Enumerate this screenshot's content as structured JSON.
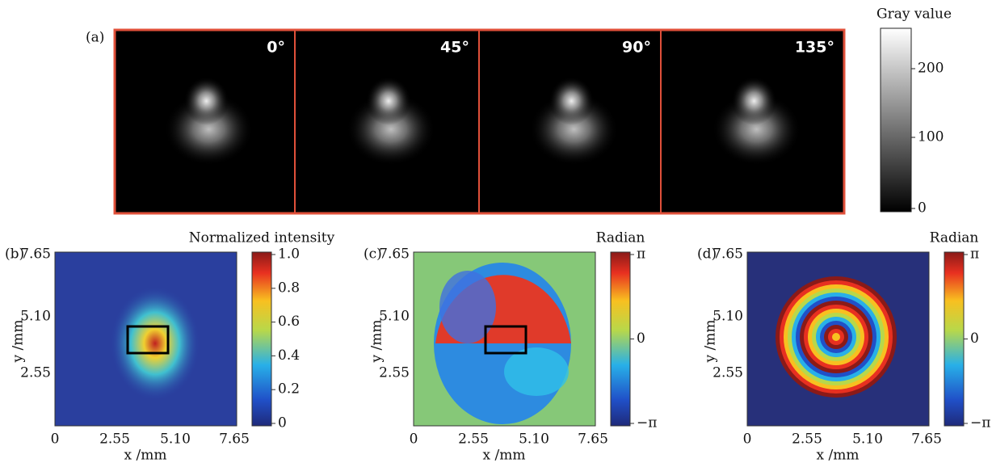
{
  "panel_a": {
    "label": "(a)",
    "angles": [
      "0°",
      "45°",
      "90°",
      "135°"
    ],
    "colorbar": {
      "title": "Gray value",
      "ticks": [
        "200",
        "100",
        "0"
      ]
    }
  },
  "panel_b": {
    "label": "(b)",
    "colorbar_title": "Normalized intensity",
    "colorbar_ticks": [
      "1.0",
      "0.8",
      "0.6",
      "0.4",
      "0.2",
      "0"
    ],
    "y_ticks": [
      "7.65",
      "5.10",
      "2.55"
    ],
    "x_ticks": [
      "0",
      "2.55",
      "5.10",
      "7.65"
    ],
    "x_label": "x /mm",
    "y_label": "y /mm"
  },
  "panel_c": {
    "label": "(c)",
    "colorbar_title": "Radian",
    "colorbar_ticks": [
      "π",
      "0",
      "−π"
    ],
    "y_ticks": [
      "7.65",
      "5.10",
      "2.55"
    ],
    "x_ticks": [
      "0",
      "2.55",
      "5.10",
      "7.65"
    ],
    "x_label": "x /mm",
    "y_label": "y /mm"
  },
  "panel_d": {
    "label": "(d)",
    "colorbar_title": "Radian",
    "colorbar_ticks": [
      "π",
      "0",
      "−π"
    ],
    "y_ticks": [
      "7.65",
      "5.10",
      "2.55"
    ],
    "x_ticks": [
      "0",
      "2.55",
      "5.10",
      "7.65"
    ],
    "x_label": "x /mm",
    "y_label": "y /mm"
  }
}
